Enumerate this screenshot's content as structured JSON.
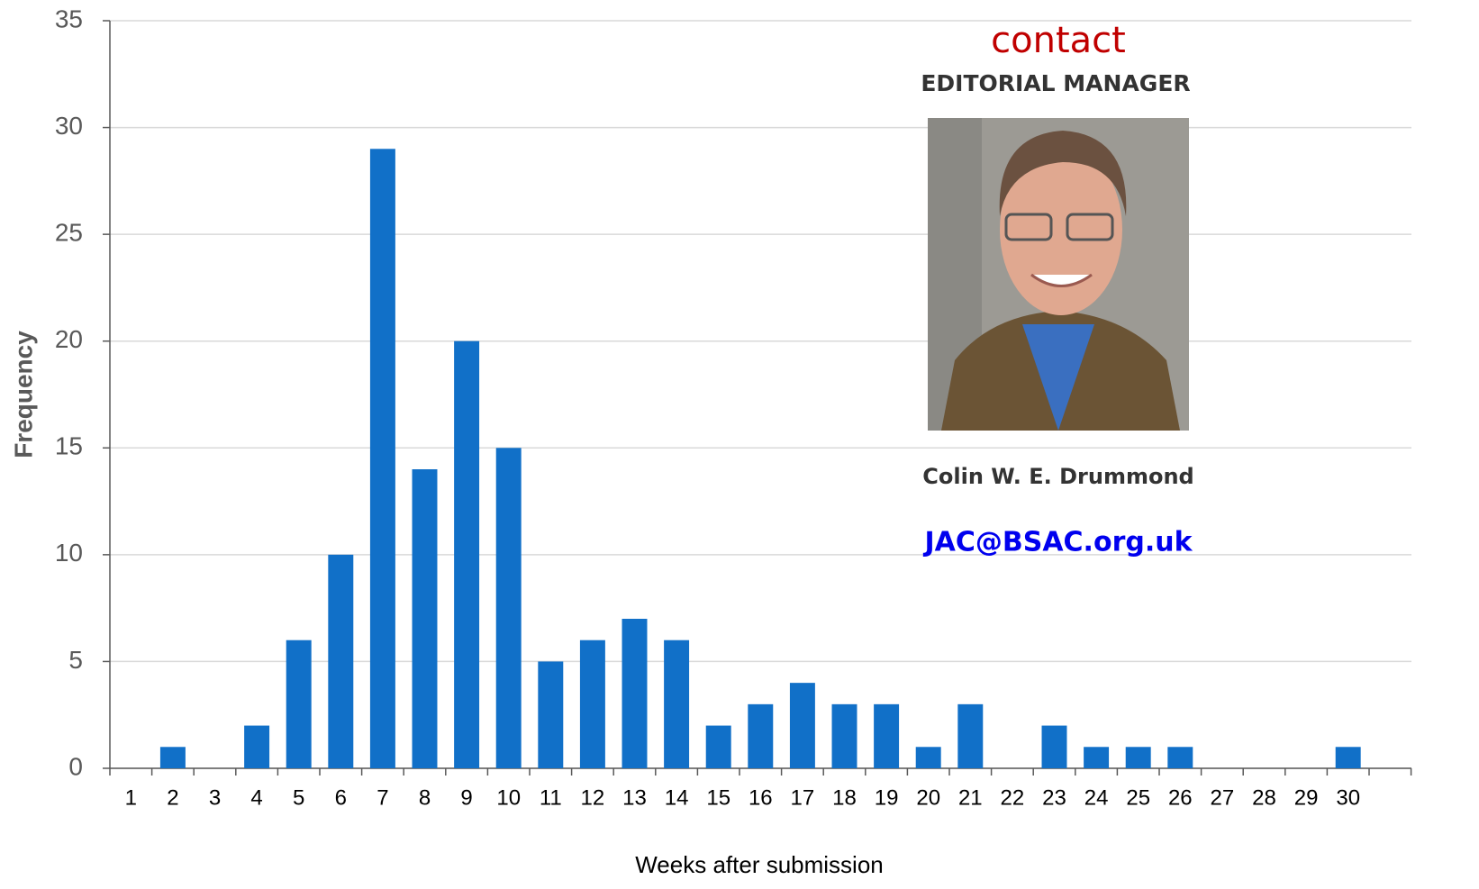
{
  "chart_data": {
    "type": "bar",
    "x_label": "Weeks after submission",
    "y_label": "Frequency",
    "categories": [
      1,
      2,
      3,
      4,
      5,
      6,
      7,
      8,
      9,
      10,
      11,
      12,
      13,
      14,
      15,
      16,
      17,
      18,
      19,
      20,
      21,
      22,
      23,
      24,
      25,
      26,
      27,
      28,
      29,
      30
    ],
    "values": [
      0,
      1,
      0,
      2,
      6,
      10,
      29,
      14,
      20,
      15,
      5,
      6,
      7,
      6,
      2,
      3,
      4,
      3,
      3,
      1,
      3,
      0,
      2,
      1,
      1,
      1,
      0,
      0,
      0,
      1
    ],
    "color": "#1170c8",
    "ylim": [
      0,
      35
    ],
    "yticks": [
      0,
      5,
      10,
      15,
      20,
      25,
      30,
      35
    ],
    "grid": true,
    "annotations": {
      "heading": "contact",
      "role": "EDITORIAL MANAGER",
      "name": "Colin W. E. Drummond",
      "email": "JAC@BSAC.org.uk"
    }
  }
}
